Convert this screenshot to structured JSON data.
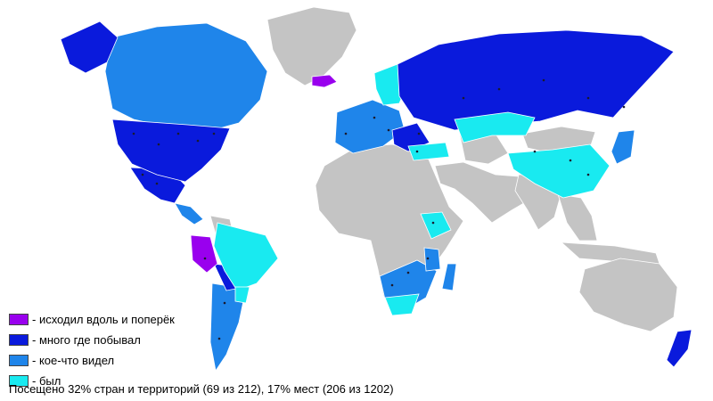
{
  "colors": {
    "walked": "#9900ee",
    "many": "#0a1adc",
    "some": "#1f85ea",
    "been": "#19eaf0",
    "not_visited": "#c4c4c4",
    "city_dot": "#1a1a2e"
  },
  "legend": [
    {
      "label": "- исходил вдоль и поперёк",
      "color": "#9900ee"
    },
    {
      "label": "- много где побывал",
      "color": "#0a1adc"
    },
    {
      "label": "- кое-что видел",
      "color": "#1f85ea"
    },
    {
      "label": "- был",
      "color": "#19eaf0"
    }
  ],
  "summary": "Посещено 32% стран и территорий (69 из 212), 17% мест (206 из 1202)"
}
